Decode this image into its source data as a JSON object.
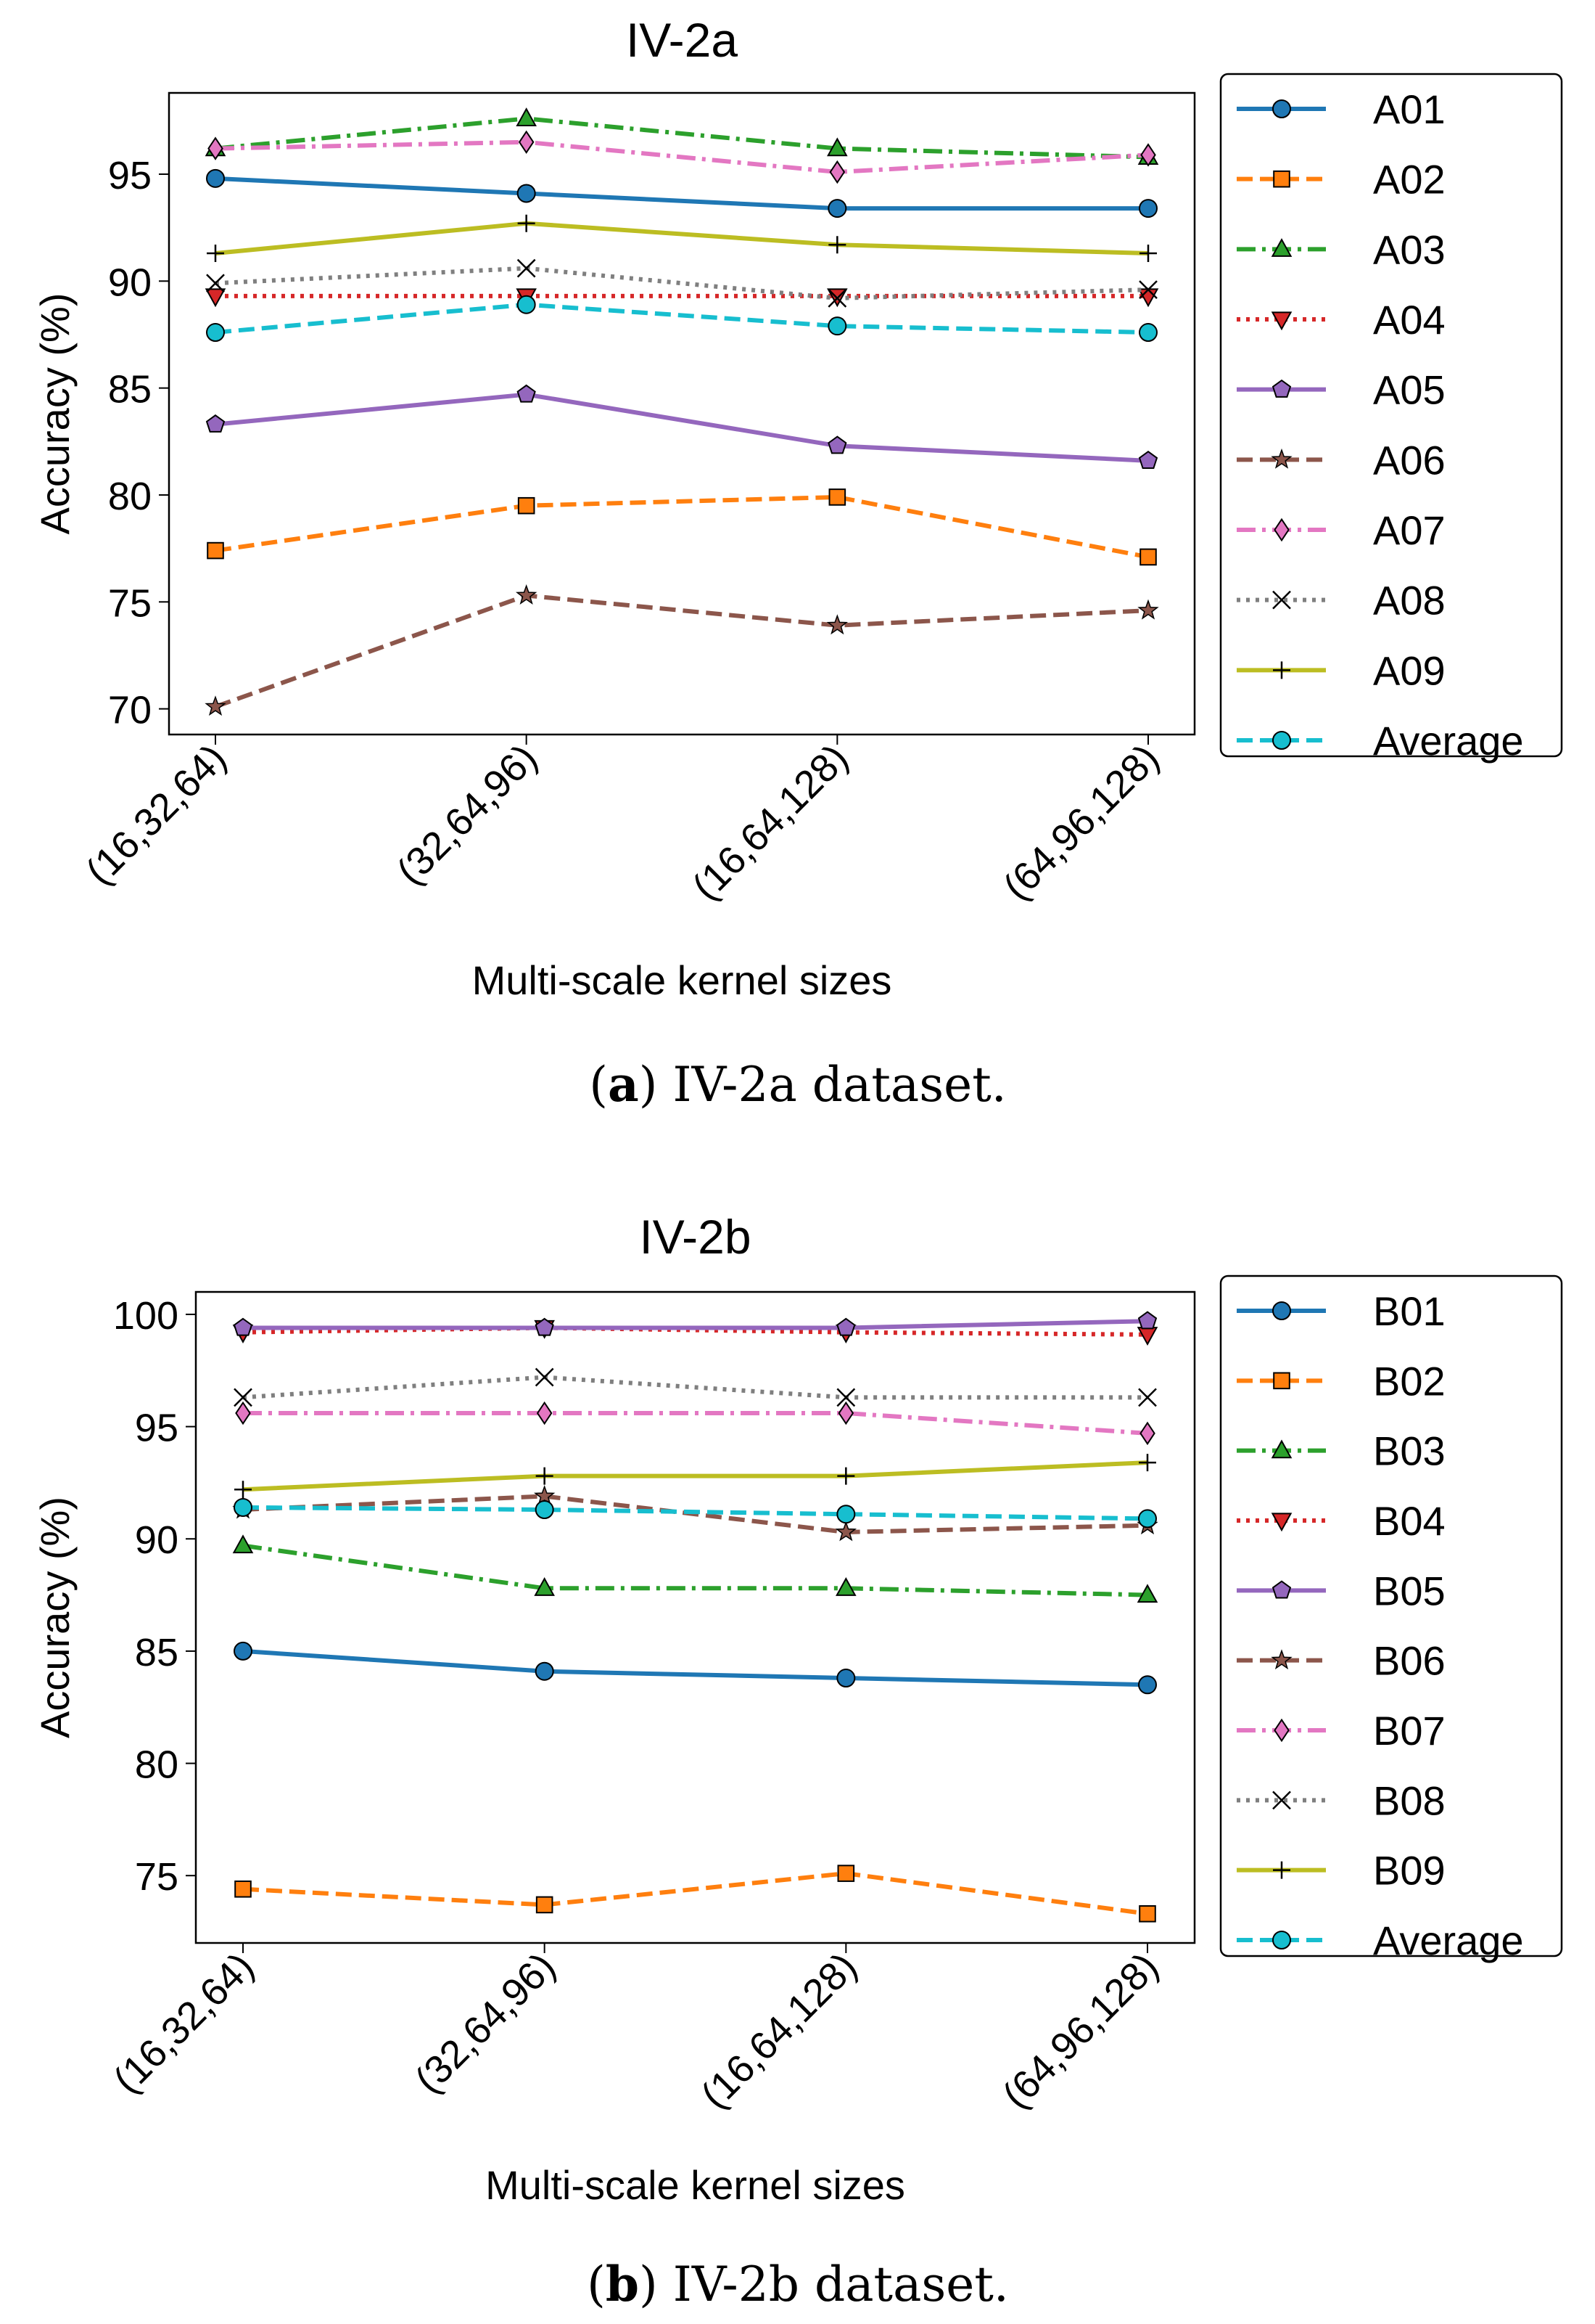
{
  "chart_data": [
    {
      "type": "line",
      "title": "IV-2a",
      "xlabel": "Multi-scale kernel sizes",
      "ylabel": "Accuracy (%)",
      "categories": [
        "(16,32,64)",
        "(32,64,96)",
        "(16,64,128)",
        "(64,96,128)"
      ],
      "ylim": [
        68.8,
        98.8
      ],
      "yticks": [
        70,
        75,
        80,
        85,
        90,
        95
      ],
      "grid": false,
      "legend_position": "right-outside",
      "caption_label": "a",
      "caption_text": " IV-2a dataset.",
      "series": [
        {
          "name": "A01",
          "values": [
            94.8,
            94.1,
            93.4,
            93.4
          ],
          "color": "#1f77b4",
          "dash": "solid",
          "marker": "circle"
        },
        {
          "name": "A02",
          "values": [
            77.4,
            79.5,
            79.9,
            77.1
          ],
          "color": "#ff7f0e",
          "dash": "dashed",
          "marker": "square"
        },
        {
          "name": "A03",
          "values": [
            96.2,
            97.6,
            96.2,
            95.8
          ],
          "color": "#2ca02c",
          "dash": "dashdot",
          "marker": "triangle-up"
        },
        {
          "name": "A04",
          "values": [
            89.3,
            89.3,
            89.3,
            89.3
          ],
          "color": "#d62728",
          "dash": "dotted",
          "marker": "triangle-down"
        },
        {
          "name": "A05",
          "values": [
            83.3,
            84.7,
            82.3,
            81.6
          ],
          "color": "#9467bd",
          "dash": "solid",
          "marker": "pentagon"
        },
        {
          "name": "A06",
          "values": [
            70.1,
            75.3,
            73.9,
            74.6
          ],
          "color": "#8c564b",
          "dash": "dashed",
          "marker": "star"
        },
        {
          "name": "A07",
          "values": [
            96.2,
            96.5,
            95.1,
            95.9
          ],
          "color": "#e377c2",
          "dash": "dashdot",
          "marker": "diamond"
        },
        {
          "name": "A08",
          "values": [
            89.9,
            90.6,
            89.2,
            89.6
          ],
          "color": "#7f7f7f",
          "dash": "dotted",
          "marker": "x"
        },
        {
          "name": "A09",
          "values": [
            91.3,
            92.7,
            91.7,
            91.3
          ],
          "color": "#bcbd22",
          "dash": "solid",
          "marker": "plus"
        },
        {
          "name": "Average",
          "values": [
            87.6,
            88.9,
            87.9,
            87.6
          ],
          "color": "#17becf",
          "dash": "dashed",
          "marker": "circle"
        }
      ]
    },
    {
      "type": "line",
      "title": "IV-2b",
      "xlabel": "Multi-scale kernel sizes",
      "ylabel": "Accuracy (%)",
      "categories": [
        "(16,32,64)",
        "(32,64,96)",
        "(16,64,128)",
        "(64,96,128)"
      ],
      "ylim": [
        72.0,
        101.0
      ],
      "yticks": [
        75,
        80,
        85,
        90,
        95,
        100
      ],
      "grid": false,
      "legend_position": "right-outside",
      "caption_label": "b",
      "caption_text": " IV-2b dataset.",
      "series": [
        {
          "name": "B01",
          "values": [
            85.0,
            84.1,
            83.8,
            83.5
          ],
          "color": "#1f77b4",
          "dash": "solid",
          "marker": "circle"
        },
        {
          "name": "B02",
          "values": [
            74.4,
            73.7,
            75.1,
            73.3
          ],
          "color": "#ff7f0e",
          "dash": "dashed",
          "marker": "square"
        },
        {
          "name": "B03",
          "values": [
            89.7,
            87.8,
            87.8,
            87.5
          ],
          "color": "#2ca02c",
          "dash": "dashdot",
          "marker": "triangle-up"
        },
        {
          "name": "B04",
          "values": [
            99.2,
            99.4,
            99.2,
            99.1
          ],
          "color": "#d62728",
          "dash": "dotted",
          "marker": "triangle-down"
        },
        {
          "name": "B05",
          "values": [
            99.4,
            99.4,
            99.4,
            99.7
          ],
          "color": "#9467bd",
          "dash": "solid",
          "marker": "pentagon"
        },
        {
          "name": "B06",
          "values": [
            91.3,
            91.9,
            90.3,
            90.6
          ],
          "color": "#8c564b",
          "dash": "dashed",
          "marker": "star"
        },
        {
          "name": "B07",
          "values": [
            95.6,
            95.6,
            95.6,
            94.7
          ],
          "color": "#e377c2",
          "dash": "dashdot",
          "marker": "diamond"
        },
        {
          "name": "B08",
          "values": [
            96.3,
            97.2,
            96.3,
            96.3
          ],
          "color": "#7f7f7f",
          "dash": "dotted",
          "marker": "x"
        },
        {
          "name": "B09",
          "values": [
            92.2,
            92.8,
            92.8,
            93.4
          ],
          "color": "#bcbd22",
          "dash": "solid",
          "marker": "plus"
        },
        {
          "name": "Average",
          "values": [
            91.4,
            91.3,
            91.1,
            90.9
          ],
          "color": "#17becf",
          "dash": "dashed",
          "marker": "circle"
        }
      ]
    }
  ]
}
